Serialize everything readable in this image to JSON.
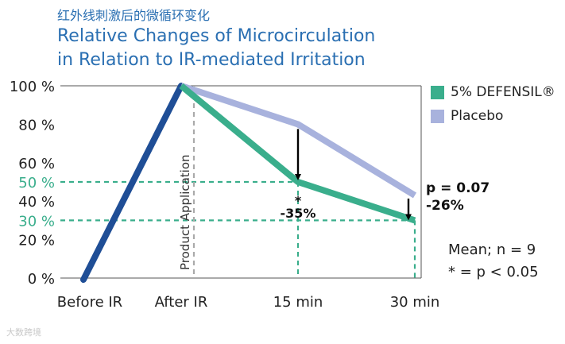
{
  "title_cn": "红外线刺激后的微循环变化",
  "title_en_line1": "Relative Changes of Microcirculation",
  "title_en_line2": "in Relation to IR-mediated Irritation",
  "notes": {
    "mean": "Mean; n = 9",
    "pvalue": "* = p < 0.05"
  },
  "watermark": "大数跨境",
  "colors": {
    "accent_blue": "#1f4e96",
    "green": "#3aae8c",
    "placebo": "#a8b2dd",
    "title_blue": "#2a6fb2"
  },
  "chart_data": {
    "type": "line",
    "title": "Relative Changes of Microcirculation in Relation to IR-mediated Irritation",
    "categories": [
      "Before IR",
      "After IR",
      "15 min",
      "30 min"
    ],
    "ylim": [
      0,
      100
    ],
    "yticks": [
      "0 %",
      "20 %",
      "30 %",
      "40 %",
      "50 %",
      "60 %",
      "80 %",
      "100 %"
    ],
    "yticks_values": [
      0,
      20,
      30,
      40,
      50,
      60,
      80,
      100
    ],
    "series": [
      {
        "name": "5% DEFENSIL®",
        "values": [
          null,
          100,
          50,
          30
        ]
      },
      {
        "name": "Placebo",
        "values": [
          null,
          100,
          80,
          43
        ]
      }
    ],
    "pre_ir_line": {
      "values": [
        -5,
        100
      ]
    },
    "reference_lines": [
      {
        "label": "50 %",
        "y": 50
      },
      {
        "label": "30 %",
        "y": 30
      }
    ],
    "vertical_label": "Product Application",
    "annotations": [
      {
        "at": "15 min",
        "text_star": "*",
        "text_value": "-35%"
      },
      {
        "at": "30 min",
        "text_p": "p = 0.07",
        "text_value": "-26%"
      }
    ]
  }
}
